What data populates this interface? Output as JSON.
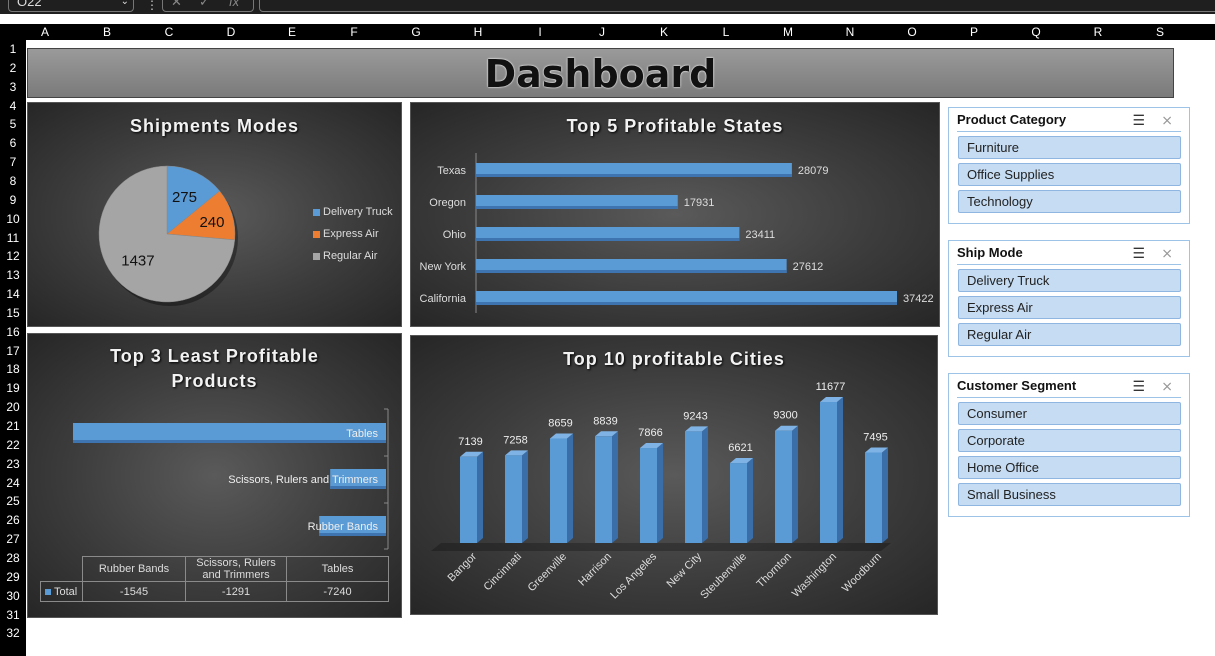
{
  "excel": {
    "name_box": "O22",
    "fx_label": "fx",
    "columns": [
      "A",
      "B",
      "C",
      "D",
      "E",
      "F",
      "G",
      "H",
      "I",
      "J",
      "K",
      "L",
      "M",
      "N",
      "O",
      "P",
      "Q",
      "R",
      "S"
    ],
    "rows": [
      "1",
      "2",
      "3",
      "4",
      "5",
      "6",
      "7",
      "8",
      "9",
      "10",
      "11",
      "12",
      "13",
      "14",
      "15",
      "16",
      "17",
      "18",
      "19",
      "20",
      "21",
      "22",
      "23",
      "24",
      "25",
      "26",
      "27",
      "28",
      "29",
      "30",
      "31",
      "32"
    ]
  },
  "dashboard": {
    "title": "Dashboard"
  },
  "shipments": {
    "title": "Shipments Modes",
    "legend": [
      "Delivery Truck",
      "Express Air",
      "Regular Air"
    ],
    "colors": [
      "#5b9bd5",
      "#ed7d31",
      "#a5a5a5"
    ],
    "chart_data": {
      "type": "pie",
      "categories": [
        "Delivery Truck",
        "Express Air",
        "Regular Air"
      ],
      "values": [
        275,
        240,
        1437
      ]
    }
  },
  "states": {
    "title": "Top 5 Profitable States",
    "chart_data": {
      "type": "bar",
      "orientation": "horizontal",
      "categories": [
        "Texas",
        "Oregon",
        "Ohio",
        "New York",
        "California"
      ],
      "values": [
        28079,
        17931,
        23411,
        27612,
        37422
      ]
    }
  },
  "least": {
    "title_line1": "Top 3 Least Profitable",
    "title_line2": "Products",
    "chart_data": {
      "type": "bar",
      "orientation": "horizontal",
      "categories": [
        "Tables",
        "Scissors, Rulers and Trimmers",
        "Rubber Bands"
      ],
      "values": [
        -7240,
        -1291,
        -1545
      ]
    },
    "table": {
      "headers": [
        "Rubber Bands",
        "Scissors, Rulers and Trimmers",
        "Tables"
      ],
      "row_label": "Total",
      "values": [
        "-1545",
        "-1291",
        "-7240"
      ]
    }
  },
  "cities": {
    "title": "Top 10 profitable  Cities",
    "chart_data": {
      "type": "bar",
      "categories": [
        "Bangor",
        "Cincinnati",
        "Greenville",
        "Harrison",
        "Los Angeles",
        "New City",
        "Steubenville",
        "Thornton",
        "Washington",
        "Woodburn"
      ],
      "values": [
        7139,
        7258,
        8659,
        8839,
        7866,
        9243,
        6621,
        9300,
        11677,
        7495
      ]
    }
  },
  "slicers": [
    {
      "title": "Product Category",
      "items": [
        "Furniture",
        "Office Supplies",
        "Technology"
      ]
    },
    {
      "title": "Ship Mode",
      "items": [
        "Delivery Truck",
        "Express Air",
        "Regular Air"
      ]
    },
    {
      "title": "Customer Segment",
      "items": [
        "Consumer",
        "Corporate",
        "Home Office",
        "Small Business"
      ]
    }
  ]
}
